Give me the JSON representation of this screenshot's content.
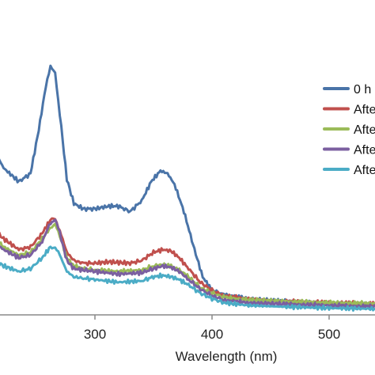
{
  "chart_data": {
    "type": "line",
    "xlabel": "Wavelength (nm)",
    "ylabel": "",
    "title": "",
    "xlim": [
      200,
      540
    ],
    "ylim": [
      0,
      1.1
    ],
    "x_ticks": [
      300,
      400,
      500
    ],
    "grid": false,
    "legend_position": "right",
    "series": [
      {
        "name": "0 h",
        "color": "#4a74a8",
        "points": [
          [
            200,
            0.79
          ],
          [
            210,
            0.64
          ],
          [
            222,
            0.54
          ],
          [
            235,
            0.49
          ],
          [
            245,
            0.52
          ],
          [
            252,
            0.68
          ],
          [
            258,
            0.84
          ],
          [
            262,
            0.91
          ],
          [
            266,
            0.89
          ],
          [
            270,
            0.74
          ],
          [
            276,
            0.5
          ],
          [
            282,
            0.41
          ],
          [
            290,
            0.39
          ],
          [
            300,
            0.39
          ],
          [
            312,
            0.4
          ],
          [
            320,
            0.4
          ],
          [
            330,
            0.38
          ],
          [
            340,
            0.42
          ],
          [
            348,
            0.49
          ],
          [
            356,
            0.53
          ],
          [
            362,
            0.52
          ],
          [
            368,
            0.48
          ],
          [
            376,
            0.38
          ],
          [
            385,
            0.24
          ],
          [
            392,
            0.14
          ],
          [
            400,
            0.09
          ],
          [
            410,
            0.075
          ],
          [
            430,
            0.06
          ],
          [
            460,
            0.05
          ],
          [
            500,
            0.04
          ],
          [
            540,
            0.037
          ]
        ]
      },
      {
        "name": "After",
        "color": "#c0504d",
        "points": [
          [
            200,
            0.38
          ],
          [
            210,
            0.33
          ],
          [
            222,
            0.28
          ],
          [
            235,
            0.24
          ],
          [
            245,
            0.25
          ],
          [
            255,
            0.3
          ],
          [
            262,
            0.35
          ],
          [
            266,
            0.35
          ],
          [
            270,
            0.31
          ],
          [
            276,
            0.23
          ],
          [
            282,
            0.2
          ],
          [
            290,
            0.19
          ],
          [
            300,
            0.19
          ],
          [
            312,
            0.195
          ],
          [
            330,
            0.19
          ],
          [
            340,
            0.2
          ],
          [
            350,
            0.23
          ],
          [
            358,
            0.24
          ],
          [
            365,
            0.235
          ],
          [
            372,
            0.21
          ],
          [
            380,
            0.17
          ],
          [
            390,
            0.12
          ],
          [
            400,
            0.09
          ],
          [
            410,
            0.07
          ],
          [
            430,
            0.06
          ],
          [
            460,
            0.05
          ],
          [
            500,
            0.045
          ],
          [
            540,
            0.042
          ]
        ]
      },
      {
        "name": "After",
        "color": "#9bbb59",
        "points": [
          [
            200,
            0.34
          ],
          [
            210,
            0.3
          ],
          [
            222,
            0.25
          ],
          [
            235,
            0.22
          ],
          [
            245,
            0.23
          ],
          [
            255,
            0.28
          ],
          [
            262,
            0.32
          ],
          [
            266,
            0.33
          ],
          [
            270,
            0.29
          ],
          [
            276,
            0.21
          ],
          [
            282,
            0.18
          ],
          [
            290,
            0.17
          ],
          [
            300,
            0.165
          ],
          [
            320,
            0.16
          ],
          [
            340,
            0.165
          ],
          [
            350,
            0.18
          ],
          [
            358,
            0.185
          ],
          [
            365,
            0.18
          ],
          [
            372,
            0.165
          ],
          [
            380,
            0.14
          ],
          [
            390,
            0.1
          ],
          [
            400,
            0.08
          ],
          [
            410,
            0.065
          ],
          [
            430,
            0.055
          ],
          [
            460,
            0.05
          ],
          [
            500,
            0.045
          ],
          [
            540,
            0.042
          ]
        ]
      },
      {
        "name": "After",
        "color": "#7b5fa0",
        "points": [
          [
            200,
            0.31
          ],
          [
            210,
            0.28
          ],
          [
            222,
            0.24
          ],
          [
            235,
            0.21
          ],
          [
            245,
            0.22
          ],
          [
            255,
            0.27
          ],
          [
            262,
            0.34
          ],
          [
            266,
            0.35
          ],
          [
            270,
            0.3
          ],
          [
            276,
            0.2
          ],
          [
            282,
            0.17
          ],
          [
            290,
            0.165
          ],
          [
            300,
            0.16
          ],
          [
            320,
            0.15
          ],
          [
            340,
            0.155
          ],
          [
            350,
            0.17
          ],
          [
            358,
            0.18
          ],
          [
            365,
            0.175
          ],
          [
            372,
            0.16
          ],
          [
            380,
            0.13
          ],
          [
            390,
            0.095
          ],
          [
            400,
            0.07
          ],
          [
            410,
            0.055
          ],
          [
            430,
            0.045
          ],
          [
            460,
            0.04
          ],
          [
            500,
            0.035
          ],
          [
            540,
            0.03
          ]
        ]
      },
      {
        "name": "After",
        "color": "#4bacc6",
        "points": [
          [
            200,
            0.24
          ],
          [
            210,
            0.21
          ],
          [
            222,
            0.18
          ],
          [
            235,
            0.16
          ],
          [
            245,
            0.17
          ],
          [
            255,
            0.21
          ],
          [
            262,
            0.25
          ],
          [
            266,
            0.25
          ],
          [
            270,
            0.22
          ],
          [
            276,
            0.16
          ],
          [
            282,
            0.14
          ],
          [
            290,
            0.135
          ],
          [
            300,
            0.13
          ],
          [
            320,
            0.12
          ],
          [
            340,
            0.125
          ],
          [
            350,
            0.14
          ],
          [
            358,
            0.145
          ],
          [
            365,
            0.14
          ],
          [
            372,
            0.13
          ],
          [
            380,
            0.11
          ],
          [
            390,
            0.08
          ],
          [
            400,
            0.06
          ],
          [
            410,
            0.045
          ],
          [
            430,
            0.035
          ],
          [
            460,
            0.03
          ],
          [
            500,
            0.025
          ],
          [
            540,
            0.022
          ]
        ]
      }
    ],
    "legend_labels": [
      "0 h",
      "Afte",
      "Afte",
      "Afte",
      "Afte"
    ]
  }
}
